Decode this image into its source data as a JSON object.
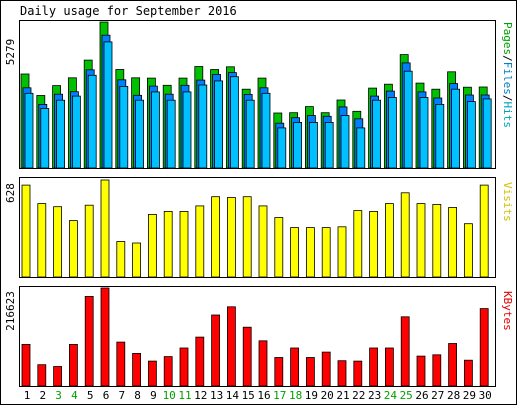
{
  "chart_data": [
    {
      "type": "bar",
      "title": "Daily usage for September 2016",
      "ylabel_max": "5279",
      "ylim": [
        0,
        5279
      ],
      "ylabel_parts": [
        {
          "text": "Pages",
          "color": "#00a000"
        },
        {
          "text": "/",
          "color": "#000000"
        },
        {
          "text": "Files",
          "color": "#0080c0"
        },
        {
          "text": "/",
          "color": "#000000"
        },
        {
          "text": "Hits",
          "color": "#00a0c0"
        }
      ],
      "categories": [
        "1",
        "2",
        "3",
        "4",
        "5",
        "6",
        "7",
        "8",
        "9",
        "10",
        "11",
        "12",
        "13",
        "14",
        "15",
        "16",
        "17",
        "18",
        "19",
        "20",
        "21",
        "22",
        "23",
        "24",
        "25",
        "26",
        "27",
        "28",
        "29",
        "30"
      ],
      "weekend_days": [
        "3",
        "4",
        "10",
        "11",
        "17",
        "18",
        "24",
        "25"
      ],
      "series": [
        {
          "name": "Hits",
          "color": "#00c000",
          "values": [
            3400,
            2620,
            2980,
            3260,
            3900,
            5279,
            3560,
            3260,
            3250,
            2990,
            3250,
            3670,
            3560,
            3660,
            2850,
            3250,
            1990,
            2000,
            2220,
            2000,
            2460,
            2050,
            2890,
            3030,
            4100,
            3070,
            2850,
            3480,
            2920,
            2930
          ]
        },
        {
          "name": "Files",
          "color": "#0080ff",
          "values": [
            2900,
            2300,
            2670,
            2760,
            3550,
            4800,
            3190,
            2630,
            2960,
            2670,
            2990,
            3180,
            3380,
            3450,
            2660,
            2900,
            1620,
            1820,
            1900,
            1870,
            2210,
            1780,
            2600,
            2780,
            3800,
            2750,
            2530,
            3050,
            2640,
            2640
          ]
        },
        {
          "name": "Pages",
          "color": "#00c0ff",
          "values": [
            2700,
            2150,
            2450,
            2600,
            3350,
            4560,
            2950,
            2450,
            2750,
            2450,
            2750,
            3000,
            3150,
            3300,
            2450,
            2700,
            1450,
            1650,
            1650,
            1650,
            1900,
            1450,
            2450,
            2550,
            3500,
            2550,
            2300,
            2850,
            2400,
            2500
          ]
        }
      ]
    },
    {
      "type": "bar",
      "ylabel": "Visits",
      "ylabel_color": "#d0c000",
      "ylabel_max": "628",
      "ylim": [
        0,
        628
      ],
      "categories": [
        "1",
        "2",
        "3",
        "4",
        "5",
        "6",
        "7",
        "8",
        "9",
        "10",
        "11",
        "12",
        "13",
        "14",
        "15",
        "16",
        "17",
        "18",
        "19",
        "20",
        "21",
        "22",
        "23",
        "24",
        "25",
        "26",
        "27",
        "28",
        "29",
        "30"
      ],
      "series": [
        {
          "name": "Visits",
          "color": "#ffff00",
          "values": [
            595,
            475,
            455,
            365,
            465,
            628,
            230,
            220,
            405,
            425,
            425,
            460,
            520,
            515,
            520,
            460,
            385,
            320,
            320,
            320,
            325,
            430,
            425,
            475,
            545,
            475,
            470,
            450,
            345,
            595
          ]
        }
      ]
    },
    {
      "type": "bar",
      "ylabel": "KBytes",
      "ylabel_color": "#e00000",
      "ylabel_max": "216623",
      "ylim": [
        0,
        216623
      ],
      "categories": [
        "1",
        "2",
        "3",
        "4",
        "5",
        "6",
        "7",
        "8",
        "9",
        "10",
        "11",
        "12",
        "13",
        "14",
        "15",
        "16",
        "17",
        "18",
        "19",
        "20",
        "21",
        "22",
        "23",
        "24",
        "25",
        "26",
        "27",
        "28",
        "29",
        "30"
      ],
      "series": [
        {
          "name": "KBytes",
          "color": "#ff0000",
          "values": [
            92000,
            47000,
            43000,
            92000,
            198000,
            216623,
            97000,
            72000,
            55000,
            65000,
            84000,
            108000,
            157000,
            175000,
            130000,
            100000,
            63000,
            84000,
            63000,
            75000,
            56000,
            55000,
            84000,
            84000,
            153000,
            66000,
            69000,
            94000,
            57000,
            171000
          ]
        }
      ]
    }
  ]
}
